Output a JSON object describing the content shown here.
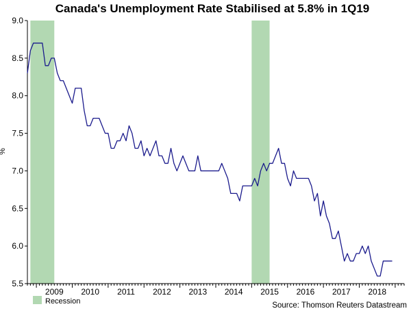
{
  "chart_data": {
    "type": "line",
    "title": "Canada's Unemployment Rate Stabilised at 5.8% in 1Q19",
    "xlabel": "",
    "ylabel": "%",
    "ylim": [
      5.5,
      9.0
    ],
    "yticks": [
      "5.5",
      "6.0",
      "6.5",
      "7.0",
      "7.5",
      "8.0",
      "8.5",
      "9.0"
    ],
    "xticks": [
      "2009",
      "2010",
      "2011",
      "2012",
      "2013",
      "2014",
      "2015",
      "2016",
      "2017",
      "2018"
    ],
    "xlim": [
      "2008-10",
      "2019-03"
    ],
    "grid": false,
    "series": [
      {
        "name": "",
        "color": "#1a1a8c",
        "x_start": "2008-10",
        "frequency": "monthly",
        "values": [
          8.3,
          8.6,
          8.7,
          8.7,
          8.7,
          8.7,
          8.4,
          8.4,
          8.5,
          8.5,
          8.3,
          8.2,
          8.2,
          8.1,
          8.0,
          7.9,
          8.1,
          8.1,
          8.1,
          7.8,
          7.6,
          7.6,
          7.7,
          7.7,
          7.7,
          7.6,
          7.5,
          7.5,
          7.3,
          7.3,
          7.4,
          7.4,
          7.5,
          7.4,
          7.6,
          7.5,
          7.3,
          7.3,
          7.4,
          7.2,
          7.3,
          7.2,
          7.3,
          7.4,
          7.2,
          7.2,
          7.1,
          7.1,
          7.3,
          7.1,
          7.0,
          7.1,
          7.2,
          7.1,
          7.0,
          7.0,
          7.0,
          7.2,
          7.0,
          7.0,
          7.0,
          7.0,
          7.0,
          7.0,
          7.0,
          7.1,
          7.0,
          6.9,
          6.7,
          6.7,
          6.7,
          6.6,
          6.8,
          6.8,
          6.8,
          6.8,
          6.9,
          6.8,
          7.0,
          7.1,
          7.0,
          7.1,
          7.1,
          7.2,
          7.3,
          7.1,
          7.1,
          6.9,
          6.8,
          7.0,
          6.9,
          6.9,
          6.9,
          6.9,
          6.9,
          6.8,
          6.6,
          6.7,
          6.4,
          6.6,
          6.4,
          6.3,
          6.1,
          6.1,
          6.2,
          6.0,
          5.8,
          5.9,
          5.8,
          5.8,
          5.9,
          5.9,
          6.0,
          5.9,
          6.0,
          5.8,
          5.7,
          5.6,
          5.6,
          5.8,
          5.8,
          5.8,
          5.8
        ]
      }
    ],
    "recessions": [
      {
        "start": "2008-11",
        "end": "2009-06"
      },
      {
        "start": "2015-01",
        "end": "2015-06"
      }
    ],
    "recession_color": "#b2d8b2",
    "legend": {
      "label": "Recession",
      "position": "bottom-left"
    },
    "source": "Source: Thomson Reuters Datastream"
  }
}
